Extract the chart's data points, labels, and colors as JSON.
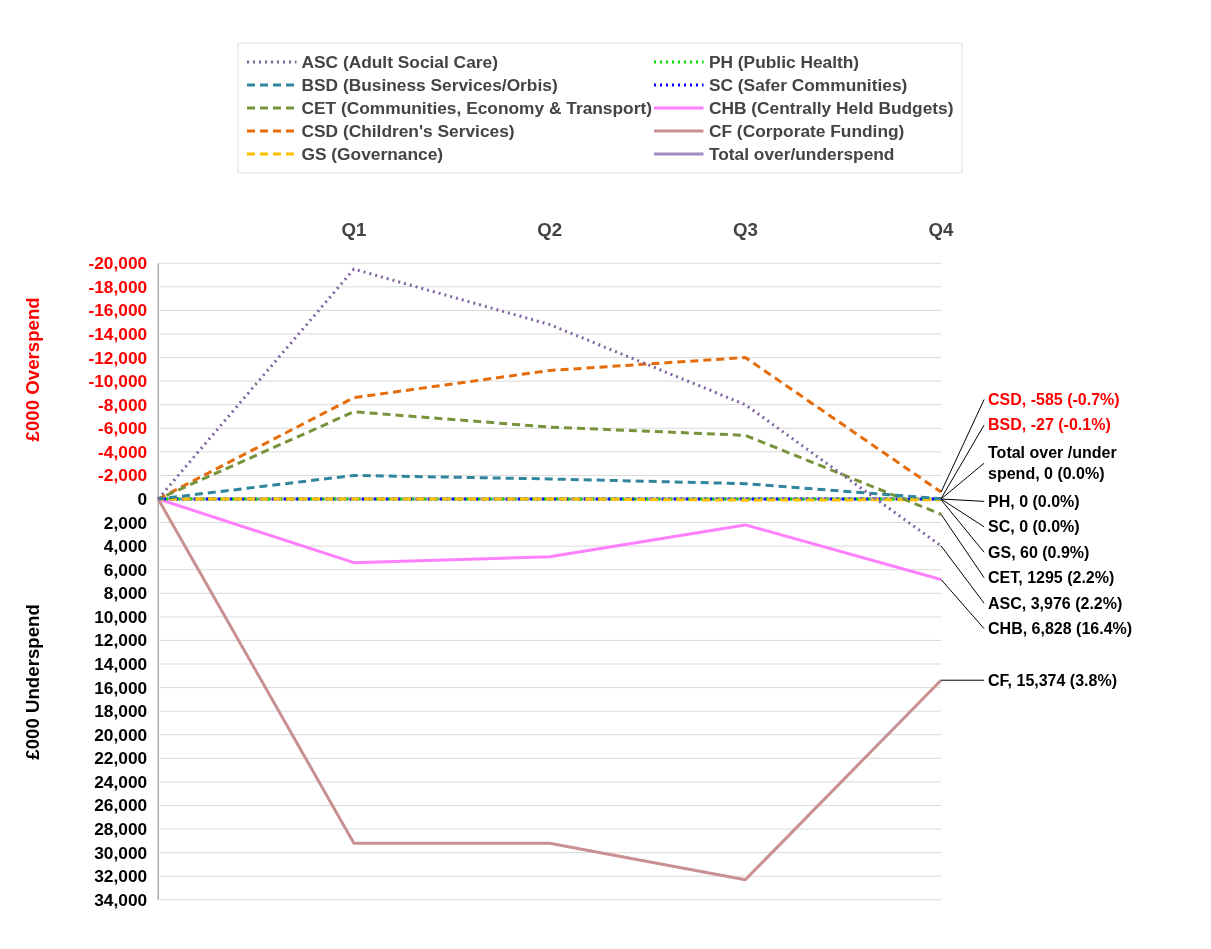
{
  "chart_data": {
    "type": "line",
    "ylabel": "£000  Underspend",
    "categories": [
      null,
      "Q1",
      "Q2",
      "Q3",
      "Q4"
    ],
    "series": [
      {
        "name": "ASC (Adult Social Care)",
        "color": "#8064a2",
        "line_style": "dotted",
        "values": [
          0,
          -19500,
          -14800,
          -8000,
          3976
        ]
      },
      {
        "name": "BSD (Business Services/Orbis)",
        "color": "#31859c",
        "line_style": "dashed",
        "values": [
          0,
          -2000,
          -1700,
          -1300,
          -27
        ]
      },
      {
        "name": "CET (Communities, Economy & Transport)",
        "color": "#77933c",
        "line_style": "dashed",
        "values": [
          0,
          -7400,
          -6100,
          -5400,
          1295
        ]
      },
      {
        "name": "CSD (Children's Services)",
        "color": "#e46c0a",
        "line_style": "dashed",
        "values": [
          0,
          -8600,
          -10900,
          -12000,
          -585
        ]
      },
      {
        "name": "GS (Governance)",
        "color": "#ffc000",
        "line_style": "dashed",
        "values": [
          0,
          0,
          0,
          100,
          60
        ]
      },
      {
        "name": "PH (Public Health)",
        "color": "#00e000",
        "line_style": "dotted",
        "values": [
          0,
          0,
          0,
          0,
          0
        ]
      },
      {
        "name": "SC (Safer Communities)",
        "color": "#0000ff",
        "line_style": "dotted",
        "values": [
          0,
          0,
          0,
          0,
          0
        ]
      },
      {
        "name": "CHB (Centrally Held Budgets)",
        "color": "#ff80ff",
        "line_style": "solid",
        "values": [
          0,
          5400,
          4900,
          2200,
          6828
        ]
      },
      {
        "name": "CF (Corporate Funding)",
        "color": "#c89090",
        "line_style": "solid",
        "values": [
          0,
          29200,
          29200,
          32300,
          15374
        ]
      },
      {
        "name": "Total over/underspend",
        "color": "#9e8fbf",
        "line_style": "solid",
        "values": [
          0,
          0,
          0,
          0,
          0
        ]
      }
    ],
    "ylim": [
      34000,
      -20000
    ],
    "yticks": [
      {
        "value": -20000,
        "label": "-20,000"
      },
      {
        "value": -18000,
        "label": "-18,000"
      },
      {
        "value": -16000,
        "label": "-16,000"
      },
      {
        "value": -14000,
        "label": "-14,000"
      },
      {
        "value": -12000,
        "label": "-12,000"
      },
      {
        "value": -10000,
        "label": "-10,000"
      },
      {
        "value": -8000,
        "label": "-8,000"
      },
      {
        "value": -6000,
        "label": "-6,000"
      },
      {
        "value": -4000,
        "label": "-4,000"
      },
      {
        "value": -2000,
        "label": "-2,000"
      },
      0,
      {
        "value": 2000,
        "label": "2,000"
      },
      {
        "value": 4000,
        "label": "4,000"
      },
      {
        "value": 6000,
        "label": "6,000"
      },
      {
        "value": 8000,
        "label": "8,000"
      },
      {
        "value": 10000,
        "label": "10,000"
      },
      {
        "value": 12000,
        "label": "12,000"
      },
      {
        "value": 14000,
        "label": "14,000"
      },
      {
        "value": 16000,
        "label": "16,000"
      },
      {
        "value": 18000,
        "label": "18,000"
      },
      {
        "value": 20000,
        "label": "20,000"
      },
      {
        "value": 22000,
        "label": "22,000"
      },
      {
        "value": 24000,
        "label": "24,000"
      },
      {
        "value": 26000,
        "label": "26,000"
      },
      {
        "value": 28000,
        "label": "28,000"
      },
      {
        "value": 30000,
        "label": "30,000"
      },
      {
        "value": 32000,
        "label": "32,000"
      },
      {
        "value": 34000,
        "label": "34,000"
      }
    ],
    "grid": "y",
    "legend": "top",
    "annotations": [
      "£000 Overspend",
      {
        "text": "CSD, -585 (-0.7%)",
        "x": "Q4",
        "y": -585
      },
      {
        "text": "BSD, -27 (-0.1%)",
        "x": "Q4",
        "y": -27
      },
      {
        "text": "Total over /under\nspend, 0 (0.0%)",
        "x": "Q4",
        "y": 0
      },
      {
        "text": "PH, 0 (0.0%)",
        "x": "Q4",
        "y": 0
      },
      {
        "text": "SC, 0 (0.0%)",
        "x": "Q4",
        "y": 0
      },
      {
        "text": "GS, 60 (0.9%)",
        "x": "Q4",
        "y": 60
      },
      {
        "text": "CET, 1295 (2.2%)",
        "x": "Q4",
        "y": 1295
      },
      {
        "text": "ASC, 3,976 (2.2%)",
        "x": "Q4",
        "y": 3976
      },
      {
        "text": "CHB, 6,828 (16.4%)",
        "x": "Q4",
        "y": 6828
      },
      {
        "text": "CF, 15,374 (3.8%)",
        "x": "Q4",
        "y": 15374
      }
    ]
  }
}
